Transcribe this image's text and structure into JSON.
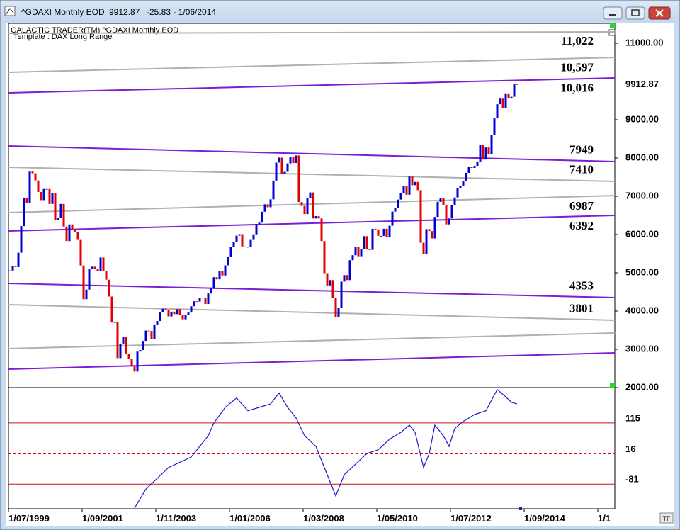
{
  "window": {
    "symbol": "^GDAXI Monthly EOD",
    "change": "-25.83 - 1/06/2014"
  },
  "header": {
    "product": "GALACTIC TRADER(TM)   ^GDAXI Monthly EOD",
    "template": "Template : DAX Long Range"
  },
  "chart_data": [
    {
      "type": "candlestick",
      "x": [
        "1/07/1999",
        "1/08/1999",
        "1/09/1999",
        "1/10/1999",
        "1/11/1999",
        "1/12/1999",
        "1/01/2000",
        "1/02/2000",
        "1/03/2000",
        "1/04/2000",
        "1/05/2000",
        "1/06/2000",
        "1/07/2000",
        "1/08/2000",
        "1/09/2000",
        "1/10/2000",
        "1/11/2000",
        "1/12/2000",
        "1/01/2001",
        "1/02/2001",
        "1/03/2001",
        "1/04/2001",
        "1/05/2001",
        "1/06/2001",
        "1/07/2001",
        "1/08/2001",
        "1/09/2001",
        "1/10/2001",
        "1/11/2001",
        "1/12/2001",
        "1/01/2002",
        "1/02/2002",
        "1/03/2002",
        "1/04/2002",
        "1/05/2002",
        "1/06/2002",
        "1/07/2002",
        "1/08/2002",
        "1/09/2002",
        "1/10/2002",
        "1/11/2002",
        "1/12/2002",
        "1/01/2003",
        "1/02/2003",
        "1/03/2003",
        "1/04/2003",
        "1/05/2003",
        "1/06/2003",
        "1/07/2003",
        "1/08/2003",
        "1/09/2003",
        "1/10/2003",
        "1/11/2003",
        "1/12/2003",
        "1/01/2004",
        "1/02/2004",
        "1/03/2004",
        "1/04/2004",
        "1/05/2004",
        "1/06/2004",
        "1/07/2004",
        "1/08/2004",
        "1/09/2004",
        "1/10/2004",
        "1/11/2004",
        "1/12/2004",
        "1/01/2005",
        "1/02/2005",
        "1/03/2005",
        "1/04/2005",
        "1/05/2005",
        "1/06/2005",
        "1/07/2005",
        "1/08/2005",
        "1/09/2005",
        "1/10/2005",
        "1/11/2005",
        "1/12/2005",
        "1/01/2006",
        "1/02/2006",
        "1/03/2006",
        "1/04/2006",
        "1/05/2006",
        "1/06/2006",
        "1/07/2006",
        "1/08/2006",
        "1/09/2006",
        "1/10/2006",
        "1/11/2006",
        "1/12/2006",
        "1/01/2007",
        "1/02/2007",
        "1/03/2007",
        "1/04/2007",
        "1/05/2007",
        "1/06/2007",
        "1/07/2007",
        "1/08/2007",
        "1/09/2007",
        "1/10/2007",
        "1/11/2007",
        "1/12/2007",
        "1/01/2008",
        "1/02/2008",
        "1/03/2008",
        "1/04/2008",
        "1/05/2008",
        "1/06/2008",
        "1/07/2008",
        "1/08/2008",
        "1/09/2008",
        "1/10/2008",
        "1/11/2008",
        "1/12/2008",
        "1/01/2009",
        "1/02/2009",
        "1/03/2009",
        "1/04/2009",
        "1/05/2009",
        "1/06/2009",
        "1/07/2009",
        "1/08/2009",
        "1/09/2009",
        "1/10/2009",
        "1/11/2009",
        "1/12/2009",
        "1/01/2010",
        "1/02/2010",
        "1/03/2010",
        "1/04/2010",
        "1/05/2010",
        "1/06/2010",
        "1/07/2010",
        "1/08/2010",
        "1/09/2010",
        "1/10/2010",
        "1/11/2010",
        "1/12/2010",
        "1/01/2011",
        "1/02/2011",
        "1/03/2011",
        "1/04/2011",
        "1/05/2011",
        "1/06/2011",
        "1/07/2011",
        "1/08/2011",
        "1/09/2011",
        "1/10/2011",
        "1/11/2011",
        "1/12/2011",
        "1/01/2012",
        "1/02/2012",
        "1/03/2012",
        "1/04/2012",
        "1/05/2012",
        "1/06/2012",
        "1/07/2012",
        "1/08/2012",
        "1/09/2012",
        "1/10/2012",
        "1/11/2012",
        "1/12/2012",
        "1/01/2013",
        "1/02/2013",
        "1/03/2013",
        "1/04/2013",
        "1/05/2013",
        "1/06/2013",
        "1/07/2013",
        "1/08/2013",
        "1/09/2013",
        "1/10/2013",
        "1/11/2013",
        "1/12/2013",
        "1/01/2014",
        "1/02/2014",
        "1/03/2014",
        "1/04/2014",
        "1/05/2014",
        "1/06/2014"
      ],
      "values": [
        5060,
        5180,
        5150,
        5525,
        6220,
        6958,
        6835,
        7645,
        7600,
        7415,
        7110,
        6900,
        7190,
        7190,
        6800,
        7080,
        6370,
        6430,
        6800,
        6210,
        5830,
        6265,
        6120,
        6060,
        5860,
        5190,
        4310,
        4560,
        5100,
        5160,
        5100,
        5040,
        5400,
        5040,
        4820,
        4380,
        3700,
        3710,
        2770,
        3150,
        3320,
        2890,
        2750,
        2550,
        2420,
        2940,
        2980,
        3220,
        3490,
        3480,
        3260,
        3650,
        3740,
        3965,
        4060,
        4020,
        3860,
        3985,
        3920,
        4050,
        3895,
        3785,
        3890,
        3960,
        4125,
        4256,
        4250,
        4350,
        4350,
        4185,
        4460,
        4585,
        4885,
        4830,
        5045,
        4930,
        5195,
        5408,
        5675,
        5800,
        5970,
        6010,
        5690,
        5680,
        5680,
        5860,
        6005,
        6270,
        6310,
        6597,
        6790,
        6715,
        6920,
        7410,
        7880,
        8010,
        7585,
        7640,
        7860,
        8020,
        7870,
        8067,
        6850,
        6750,
        6535,
        6950,
        7100,
        6420,
        6480,
        6420,
        5830,
        4990,
        4670,
        4810,
        4340,
        3840,
        4085,
        4770,
        4940,
        4810,
        5330,
        5460,
        5675,
        5415,
        5625,
        5957,
        5610,
        5600,
        6150,
        6135,
        5965,
        5965,
        6150,
        5925,
        6230,
        6600,
        6690,
        6914,
        7080,
        7270,
        7040,
        7515,
        7290,
        7375,
        7160,
        5785,
        5500,
        6140,
        6090,
        5898,
        6460,
        6855,
        6950,
        6760,
        6265,
        6420,
        6770,
        6970,
        7215,
        7260,
        7405,
        7612,
        7775,
        7740,
        7795,
        7910,
        8350,
        7960,
        8275,
        8100,
        8595,
        9035,
        9405,
        9552,
        9305,
        9690,
        9555,
        9600,
        9945,
        9912.87
      ],
      "up_color": "#0000d0",
      "down_color": "#e00000",
      "ylim": [
        2000,
        11519
      ],
      "yticks": [
        {
          "value": 11000,
          "label": "11000.00"
        },
        {
          "value": 9000,
          "label": "9000.00"
        },
        {
          "value": 8000,
          "label": "8000.00"
        },
        {
          "value": 7000,
          "label": "7000.00"
        },
        {
          "value": 6000,
          "label": "6000.00"
        },
        {
          "value": 5000,
          "label": "5000.00"
        },
        {
          "value": 4000,
          "label": "4000.00"
        },
        {
          "value": 3000,
          "label": "3000.00"
        },
        {
          "value": 2000,
          "label": "2000.00"
        }
      ],
      "xticks": [
        "1/07/1999",
        "1/09/2001",
        "1/11/2003",
        "1/01/2006",
        "1/03/2008",
        "1/05/2010",
        "1/07/2012",
        "1/09/2014",
        "1/1"
      ],
      "levels": [
        {
          "values": [
            11259,
            11296
          ],
          "color": "#b0b0b0",
          "label": "11,022"
        },
        {
          "values": [
            10241,
            10630
          ],
          "color": "#b0b0b0",
          "label": "10,597"
        },
        {
          "values": [
            9704,
            10093
          ],
          "color": "#7a1fd6",
          "label": "10,016"
        },
        {
          "values": [
            8315,
            7907
          ],
          "color": "#7a1fd6",
          "label": "7949"
        },
        {
          "values": [
            7759,
            7389
          ],
          "color": "#b0b0b0",
          "label": "7410"
        },
        {
          "values": [
            6574,
            7019
          ],
          "color": "#b0b0b0",
          "label": "6987"
        },
        {
          "values": [
            6093,
            6500
          ],
          "color": "#7a1fd6",
          "label": "6392"
        },
        {
          "values": [
            4722,
            4352
          ],
          "color": "#7a1fd6",
          "label": "4353"
        },
        {
          "values": [
            4167,
            3759
          ],
          "color": "#b0b0b0",
          "label": "3801"
        },
        {
          "values": [
            3019,
            3426
          ],
          "color": "#b0b0b0"
        },
        {
          "values": [
            2481,
            2907
          ],
          "color": "#7a1fd6"
        }
      ]
    },
    {
      "type": "line",
      "x": [
        "1/03/2003",
        "1/07/2003",
        "1/03/2004",
        "1/11/2004",
        "1/05/2005",
        "1/07/2005",
        "1/11/2005",
        "1/03/2006",
        "1/07/2006",
        "1/11/2006",
        "1/03/2007",
        "1/06/2007",
        "1/09/2007",
        "1/12/2007",
        "1/03/2008",
        "1/07/2008",
        "1/11/2008",
        "1/02/2009",
        "1/05/2009",
        "1/09/2009",
        "1/01/2010",
        "1/05/2010",
        "1/09/2010",
        "1/01/2011",
        "1/04/2011",
        "1/06/2011",
        "1/09/2011",
        "1/11/2011",
        "1/01/2012",
        "1/04/2012",
        "1/06/2012",
        "1/08/2012",
        "1/11/2012",
        "1/03/2013",
        "1/07/2013",
        "1/11/2013",
        "1/02/2014",
        "1/04/2014",
        "1/06/2014"
      ],
      "values": [
        -158,
        -97,
        -28,
        6,
        74,
        115,
        165,
        195,
        154,
        165,
        176,
        211,
        165,
        131,
        74,
        40,
        -51,
        -119,
        -51,
        -17,
        17,
        29,
        63,
        85,
        108,
        85,
        -28,
        17,
        108,
        74,
        40,
        97,
        120,
        142,
        154,
        222,
        199,
        181,
        176
      ],
      "color": "#1a1acc",
      "ylim": [
        -160,
        226
      ],
      "yticks": [
        115,
        16,
        -81
      ],
      "ytick_line_styles": [
        "solid",
        "dashed",
        "solid"
      ],
      "grid_color": "#d01010"
    }
  ]
}
